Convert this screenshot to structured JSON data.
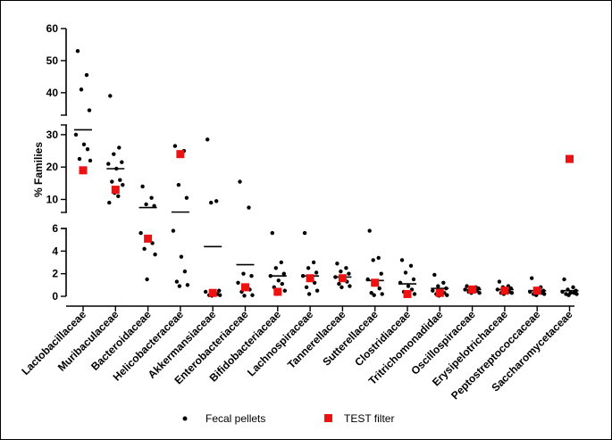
{
  "chart_data": {
    "type": "scatter",
    "title": "",
    "ylabel": "% Families",
    "xlabel": "",
    "y_axis_segments": [
      {
        "range": [
          0,
          6
        ],
        "ticks": [
          0,
          2,
          4,
          6
        ]
      },
      {
        "range": [
          6,
          33
        ],
        "ticks": [
          10,
          20,
          30
        ]
      },
      {
        "range": [
          33,
          60
        ],
        "ticks": [
          40,
          50,
          60
        ]
      }
    ],
    "categories": [
      "Lactobacillaceae",
      "Muribaculaceae",
      "Bacteroidaceae",
      "Helicobacteraceae",
      "Akkermansiaceae",
      "Enterobacteriaceae",
      "Bifidobacteriaceae",
      "Lachnospiraceae",
      "Tannerellaceae",
      "Sutterellaceae",
      "Clostridiaceae",
      "Tritrichomonadidae",
      "Oscillospiraceae",
      "Erysipelotrichaceae",
      "Peptostreptococcaceae",
      "Saccharomycetaceae"
    ],
    "series": [
      {
        "name": "Fecal pellets",
        "color": "#000000",
        "marker": "circle",
        "points": [
          [
            53,
            45.5,
            41,
            34.5,
            30,
            27,
            25.5,
            22.5,
            22,
            19
          ],
          [
            39,
            26,
            24,
            21.5,
            21,
            19.5,
            16,
            15.5,
            14.5,
            12,
            11,
            9
          ],
          [
            14,
            10.5,
            8.5,
            8,
            5.6,
            5.0,
            4.7,
            4.2,
            3.7,
            1.5
          ],
          [
            26.5,
            25,
            14.5,
            10.5,
            5.8,
            3.5,
            2.2,
            1.3,
            1.0,
            0.9
          ],
          [
            28.5,
            9.5,
            9,
            0.5,
            0.4,
            0.3,
            0.2,
            0.1,
            0.1,
            0.05
          ],
          [
            15.5,
            7.5,
            2.0,
            1.8,
            1.2,
            0.9,
            0.6,
            0.4,
            0.1,
            0.05
          ],
          [
            5.6,
            3.0,
            2.5,
            2.0,
            1.8,
            1.4,
            1.1,
            0.8,
            0.5,
            0.2
          ],
          [
            5.6,
            3.0,
            2.5,
            2.1,
            1.8,
            1.5,
            1.2,
            0.8,
            0.5,
            0.2
          ],
          [
            2.9,
            2.5,
            2.2,
            2.0,
            1.7,
            1.5,
            1.3,
            1.1,
            0.9,
            0.8
          ],
          [
            5.8,
            3.4,
            3.2,
            2.0,
            1.5,
            1.1,
            0.7,
            0.3,
            0.2,
            0.1
          ],
          [
            3.2,
            2.7,
            2.1,
            1.5,
            1.2,
            0.9,
            0.6,
            0.4,
            0.2,
            0.1
          ],
          [
            1.9,
            1.2,
            0.9,
            0.7,
            0.5,
            0.4,
            0.3,
            0.2,
            0.1,
            0.05
          ],
          [
            0.9,
            0.8,
            0.7,
            0.7,
            0.6,
            0.5,
            0.5,
            0.4,
            0.3,
            0.3
          ],
          [
            1.3,
            0.9,
            0.8,
            0.7,
            0.6,
            0.5,
            0.4,
            0.3,
            0.3,
            0.2
          ],
          [
            1.6,
            0.8,
            0.6,
            0.5,
            0.4,
            0.3,
            0.3,
            0.2,
            0.2,
            0.1
          ],
          [
            1.5,
            0.8,
            0.6,
            0.5,
            0.4,
            0.3,
            0.3,
            0.2,
            0.2,
            0.1
          ]
        ]
      },
      {
        "name": "TEST filter",
        "color": "#ee1111",
        "marker": "square",
        "values": [
          19,
          13,
          5.1,
          24,
          0.3,
          0.8,
          0.4,
          1.6,
          1.6,
          1.2,
          0.2,
          0.3,
          0.6,
          0.5,
          0.5,
          22.5
        ]
      }
    ],
    "means": [
      31.5,
      19.5,
      7.5,
      6.1,
      4.4,
      2.8,
      1.8,
      1.8,
      1.7,
      1.4,
      1.1,
      0.7,
      0.6,
      0.6,
      0.5,
      0.5
    ],
    "legend": {
      "position": "bottom",
      "items": [
        {
          "label": "Fecal pellets",
          "marker": "circle",
          "color": "#000000"
        },
        {
          "label": "TEST filter",
          "marker": "square",
          "color": "#ee1111"
        }
      ]
    }
  }
}
